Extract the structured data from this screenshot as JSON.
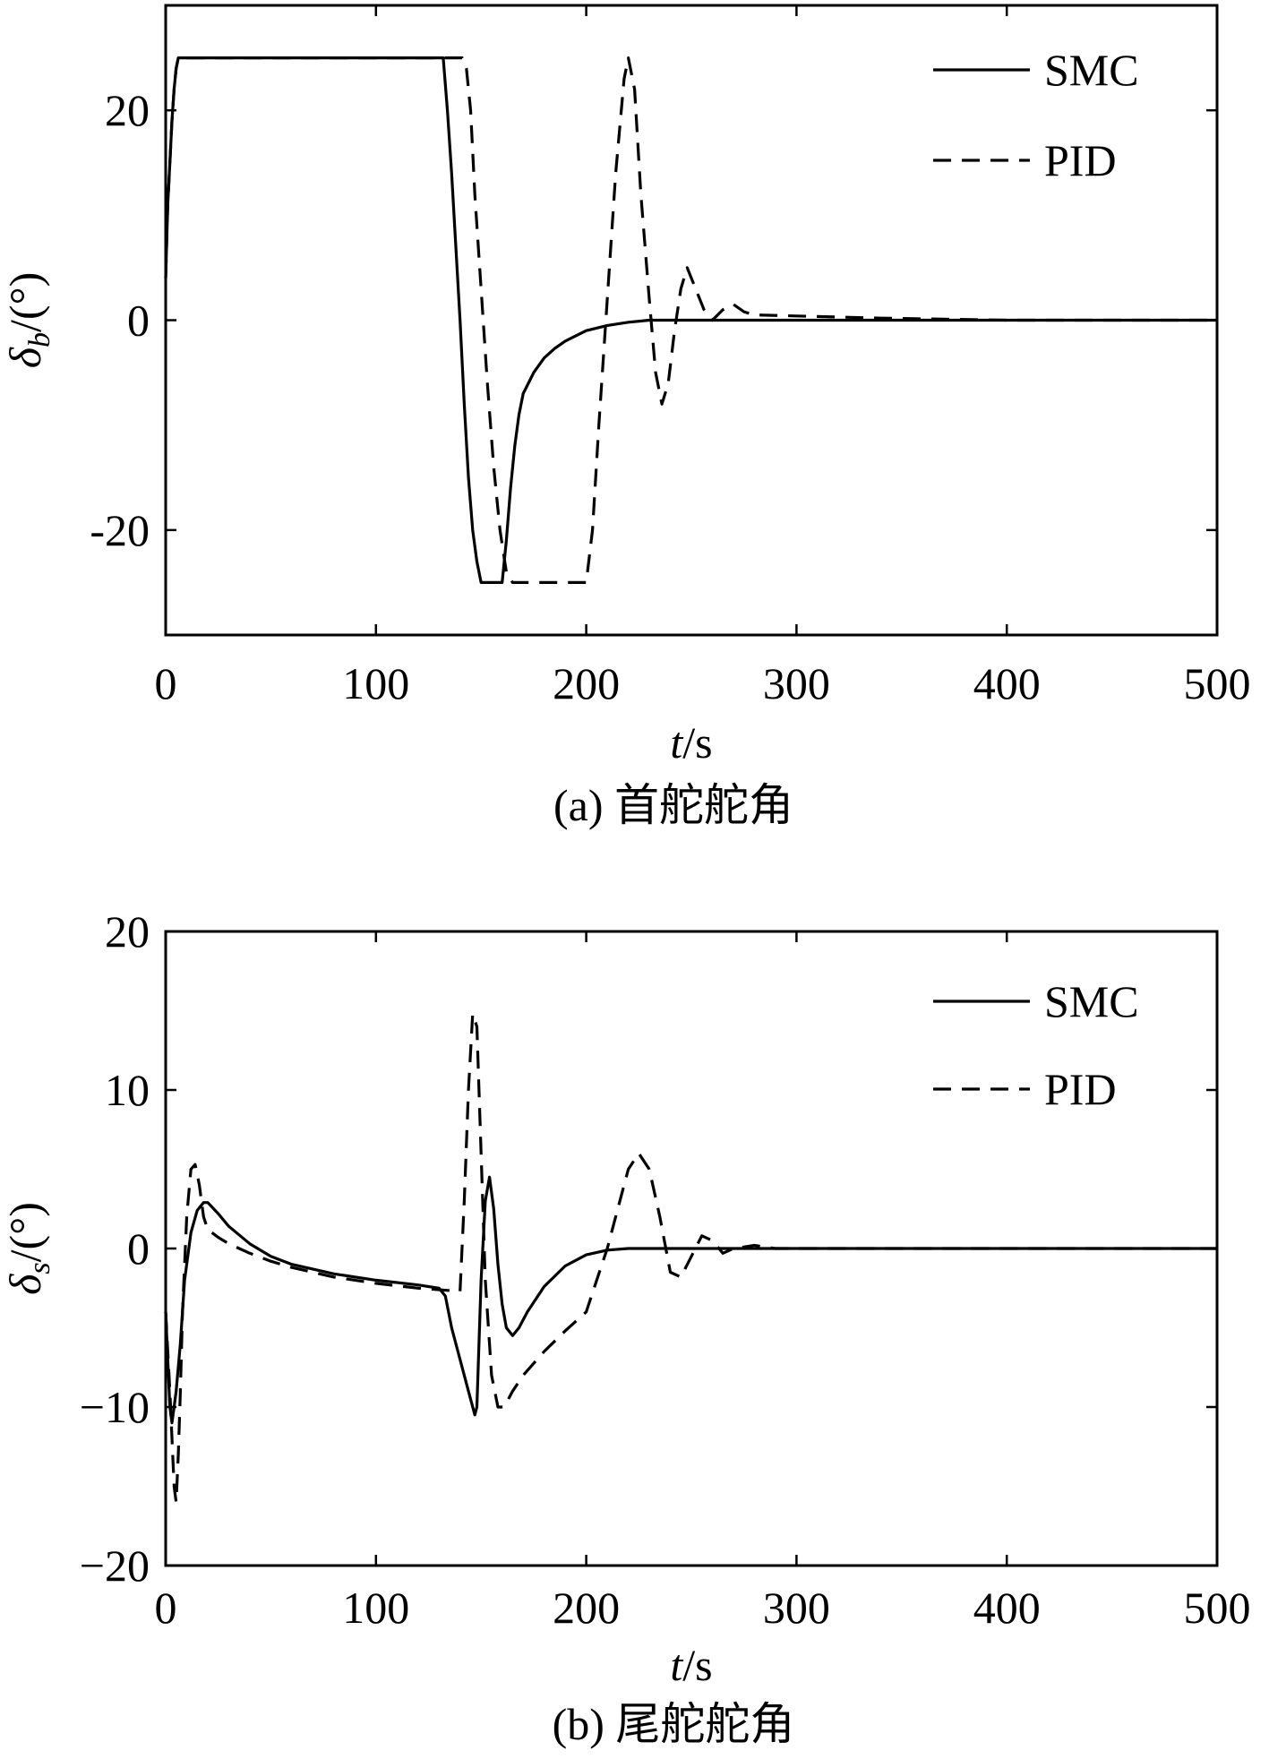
{
  "figure": {
    "chart_data": [
      {
        "type": "line",
        "caption": "(a) 首舵舵角",
        "xlabel": {
          "italic": "t",
          "rest": "/s"
        },
        "ylabel": {
          "symbol": "δ",
          "subscript": "b",
          "rest": "/(°)"
        },
        "xlim": [
          0,
          500
        ],
        "ylim": [
          -30,
          30
        ],
        "xticks": [
          0,
          100,
          200,
          300,
          400,
          500
        ],
        "yticks": [
          -20,
          0,
          20
        ],
        "ytick_labels": [
          "-20",
          "0",
          "20"
        ],
        "grid": false,
        "legend": {
          "position": "top-right",
          "entries": [
            "SMC",
            "PID"
          ]
        },
        "series": [
          {
            "name": "SMC",
            "style": "solid",
            "x": [
              0,
              1,
              2,
              3,
              4,
              5,
              6,
              7,
              8,
              132,
              134,
              136,
              138,
              140,
              142,
              144,
              146,
              148,
              150,
              160,
              162,
              164,
              166,
              168,
              170,
              175,
              180,
              185,
              190,
              200,
              210,
              220,
              230,
              250,
              300,
              400,
              500
            ],
            "y": [
              4,
              11,
              15,
              19,
              22,
              24,
              25,
              25,
              25,
              25,
              20,
              14,
              7,
              0,
              -8,
              -15,
              -20,
              -23,
              -25,
              -25,
              -21,
              -16,
              -12,
              -9,
              -7,
              -5,
              -3.6,
              -2.7,
              -2,
              -1,
              -0.5,
              -0.2,
              0,
              0,
              0,
              0,
              0
            ]
          },
          {
            "name": "PID",
            "style": "dashed",
            "x": [
              0,
              1,
              2,
              3,
              4,
              5,
              6,
              7,
              8,
              141,
              143,
              145,
              147,
              150,
              153,
              156,
              159,
              162,
              165,
              200,
              203,
              206,
              210,
              214,
              218,
              220,
              223,
              226,
              230,
              233,
              236,
              239,
              242,
              245,
              248,
              252,
              256,
              260,
              265,
              270,
              275,
              280,
              300,
              340,
              400,
              500
            ],
            "y": [
              4,
              11,
              15,
              19,
              22,
              24,
              25,
              25,
              25,
              25,
              24,
              20,
              12,
              3,
              -6,
              -14,
              -20,
              -24,
              -25,
              -25,
              -20,
              -10,
              2,
              14,
              23,
              25,
              22,
              12,
              2,
              -5,
              -8,
              -6,
              -1,
              3,
              5,
              3,
              1,
              0,
              1,
              1.5,
              0.8,
              0.5,
              0.4,
              0.2,
              0,
              0
            ]
          }
        ]
      },
      {
        "type": "line",
        "caption": "(b) 尾舵舵角",
        "xlabel": {
          "italic": "t",
          "rest": "/s"
        },
        "ylabel": {
          "symbol": "δ",
          "subscript": "s",
          "rest": "/(°)"
        },
        "xlim": [
          0,
          500
        ],
        "ylim": [
          -20,
          20
        ],
        "xticks": [
          0,
          100,
          200,
          300,
          400,
          500
        ],
        "yticks": [
          -20,
          -10,
          0,
          10,
          20
        ],
        "ytick_labels": [
          "−20",
          "−10",
          "0",
          "10",
          "20"
        ],
        "grid": false,
        "legend": {
          "position": "top-right",
          "entries": [
            "SMC",
            "PID"
          ]
        },
        "series": [
          {
            "name": "SMC",
            "style": "solid",
            "x": [
              0,
              1,
              2,
              3,
              4,
              5,
              7,
              9,
              12,
              15,
              18,
              20,
              25,
              30,
              40,
              50,
              60,
              80,
              100,
              120,
              130,
              133,
              136,
              140,
              144,
              147,
              148,
              150,
              152,
              154,
              156,
              158,
              160,
              162,
              165,
              168,
              172,
              180,
              190,
              200,
              210,
              220,
              230,
              300,
              400,
              500
            ],
            "y": [
              -4,
              -7,
              -10,
              -11,
              -10,
              -9,
              -6,
              -2,
              1,
              2.4,
              2.9,
              2.9,
              2.2,
              1.4,
              0.3,
              -0.5,
              -1,
              -1.6,
              -2,
              -2.3,
              -2.5,
              -3,
              -5,
              -7,
              -9,
              -10.5,
              -10,
              -2,
              3,
              4.5,
              2.5,
              -1,
              -3.5,
              -5,
              -5.5,
              -5,
              -4,
              -2.4,
              -1.1,
              -0.4,
              -0.1,
              0,
              0,
              0,
              0,
              0
            ]
          },
          {
            "name": "PID",
            "style": "dashed",
            "x": [
              0,
              2,
              4,
              5,
              6,
              7,
              8,
              10,
              12,
              14,
              16,
              18,
              20,
              25,
              30,
              40,
              50,
              60,
              80,
              100,
              120,
              140,
              142,
              144,
              146,
              148,
              150,
              152,
              155,
              158,
              161,
              165,
              170,
              180,
              190,
              200,
              205,
              210,
              215,
              220,
              225,
              230,
              235,
              240,
              245,
              250,
              255,
              260,
              265,
              270,
              280,
              290,
              300,
              400,
              500
            ],
            "y": [
              -4,
              -9,
              -15,
              -16,
              -13,
              -9,
              -4,
              2,
              5,
              5.3,
              4,
              2,
              1.2,
              0.7,
              0.3,
              -0.3,
              -0.8,
              -1.2,
              -1.8,
              -2.2,
              -2.5,
              -2.7,
              3,
              10,
              14.8,
              14,
              6,
              -2,
              -8,
              -10,
              -10,
              -9,
              -8,
              -6.5,
              -5.2,
              -4,
              -2,
              0,
              2.5,
              5,
              6,
              5,
              2,
              -1.5,
              -1.8,
              -0.5,
              0.8,
              0.5,
              -0.3,
              0,
              0.2,
              0,
              0,
              0,
              0
            ]
          }
        ]
      }
    ]
  }
}
